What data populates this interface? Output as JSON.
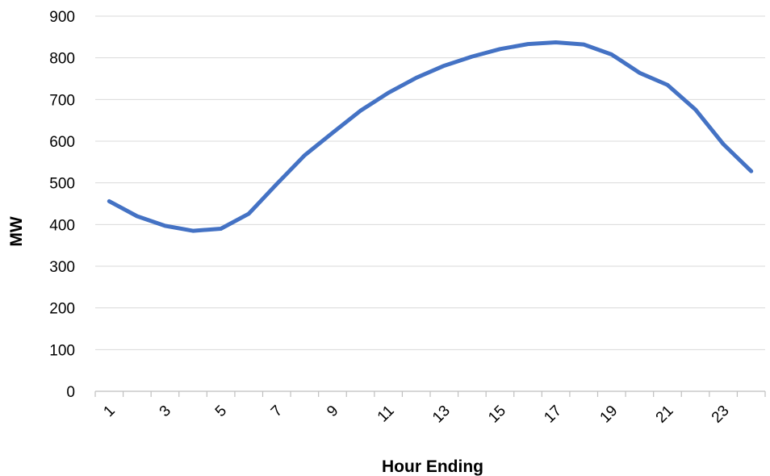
{
  "chart_data": {
    "type": "line",
    "title": "",
    "xlabel": "Hour Ending",
    "ylabel": "MW",
    "x": [
      1,
      2,
      3,
      4,
      5,
      6,
      7,
      8,
      9,
      10,
      11,
      12,
      13,
      14,
      15,
      16,
      17,
      18,
      19,
      20,
      21,
      22,
      23,
      24
    ],
    "x_tick_labels": [
      "1",
      "3",
      "5",
      "7",
      "9",
      "11",
      "13",
      "15",
      "17",
      "19",
      "21",
      "23"
    ],
    "y_tick_labels": [
      "0",
      "100",
      "200",
      "300",
      "400",
      "500",
      "600",
      "700",
      "800",
      "900"
    ],
    "ylim": [
      0,
      900
    ],
    "grid": true,
    "legend": "none",
    "series": [
      {
        "color": "#4472c4",
        "values": [
          456,
          420,
          397,
          385,
          390,
          426,
          497,
          566,
          620,
          673,
          716,
          752,
          781,
          803,
          821,
          833,
          837,
          832,
          808,
          764,
          735,
          676,
          593,
          528
        ]
      }
    ]
  }
}
